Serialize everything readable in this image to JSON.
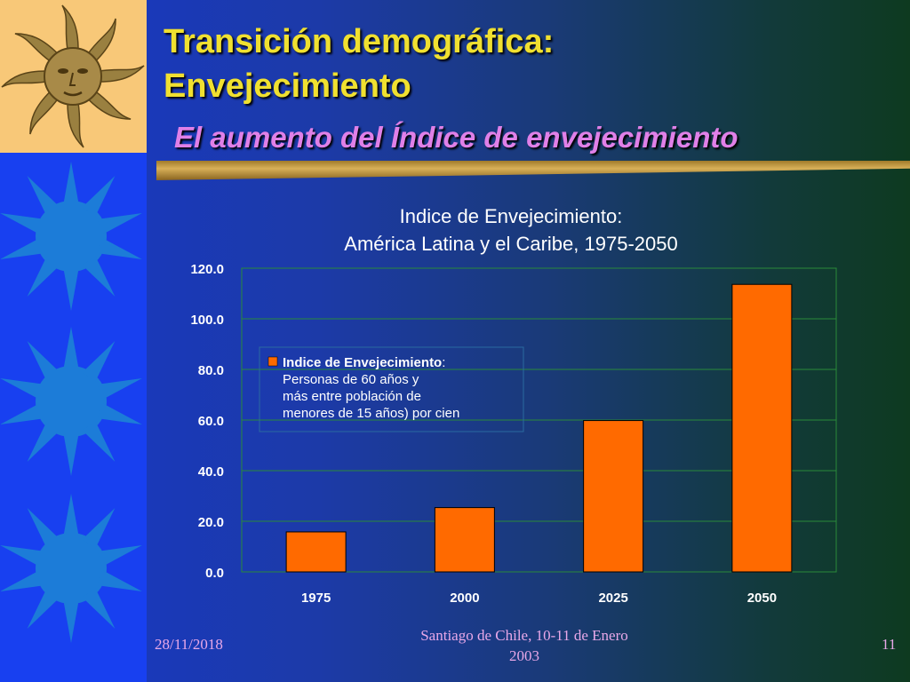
{
  "slide": {
    "title_line1": "Transición demográfica:",
    "title_line2": "Envejecimiento",
    "subtitle": "El aumento del Índice de envejecimiento"
  },
  "colors": {
    "title": "#f0e030",
    "subtitle": "#e080e8",
    "bar": "#ff6a00",
    "sidebar": "#1840f0",
    "logo_bg": "#f8c878",
    "footer": "#e8a8e8"
  },
  "decor": {
    "logo_icon": "sun-face-icon",
    "sidebar_icon": "sun-icon",
    "sidebar_icon_count": 3
  },
  "chart_data": {
    "type": "bar",
    "title": "Indice de Envejecimiento:",
    "subtitle": "América Latina y el Caribe, 1975-2050",
    "categories": [
      "1975",
      "2000",
      "2025",
      "2050"
    ],
    "series": [
      {
        "name": "Indice de Envejecimiento",
        "name_suffix": ":",
        "description_lines": [
          "Personas de 60 años y",
          "más entre población de",
          "menores de 15 años) por cien"
        ],
        "values": [
          15.8,
          25.4,
          59.8,
          113.6
        ],
        "color": "#ff6a00"
      }
    ],
    "yticks": [
      "0.0",
      "20.0",
      "40.0",
      "60.0",
      "80.0",
      "100.0",
      "120.0"
    ],
    "ylim": [
      0,
      120
    ],
    "grid": true,
    "legend_position": "upper-left"
  },
  "footer": {
    "date": "28/11/2018",
    "center_line1": "Santiago de Chile, 10-11 de Enero",
    "center_line2": "2003",
    "page_number": "11"
  }
}
